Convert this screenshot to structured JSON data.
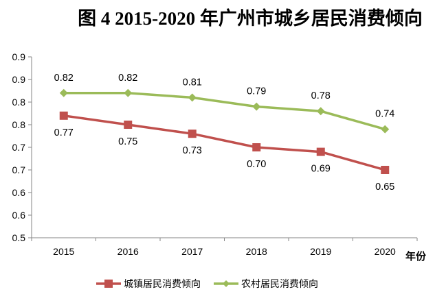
{
  "chart_data": {
    "type": "line",
    "title": "图 4 2015-2020 年广州市城乡居民消费倾向",
    "xlabel": "年份",
    "ylabel": "",
    "categories": [
      "2015",
      "2016",
      "2017",
      "2018",
      "2019",
      "2020"
    ],
    "ylim": [
      0.5,
      0.9
    ],
    "y_ticks": [
      0.5,
      0.55,
      0.6,
      0.65,
      0.7,
      0.75,
      0.8,
      0.85,
      0.9
    ],
    "y_tick_labels": [
      "0.5",
      "0.6",
      "0.6",
      "0.7",
      "0.7",
      "0.8",
      "0.8",
      "0.9",
      "0.9"
    ],
    "grid": false,
    "legend_position": "bottom",
    "series": [
      {
        "name": "城镇居民消费倾向",
        "color": "#C0504D",
        "marker": "square",
        "values": [
          0.77,
          0.75,
          0.73,
          0.7,
          0.69,
          0.65
        ],
        "labels": [
          "0.77",
          "0.75",
          "0.73",
          "0.70",
          "0.69",
          "0.65"
        ],
        "label_position": "below"
      },
      {
        "name": "农村居民消费倾向",
        "color": "#9BBB59",
        "marker": "diamond",
        "values": [
          0.82,
          0.82,
          0.81,
          0.79,
          0.78,
          0.74
        ],
        "labels": [
          "0.82",
          "0.82",
          "0.81",
          "0.79",
          "0.78",
          "0.74"
        ],
        "label_position": "above"
      }
    ]
  }
}
